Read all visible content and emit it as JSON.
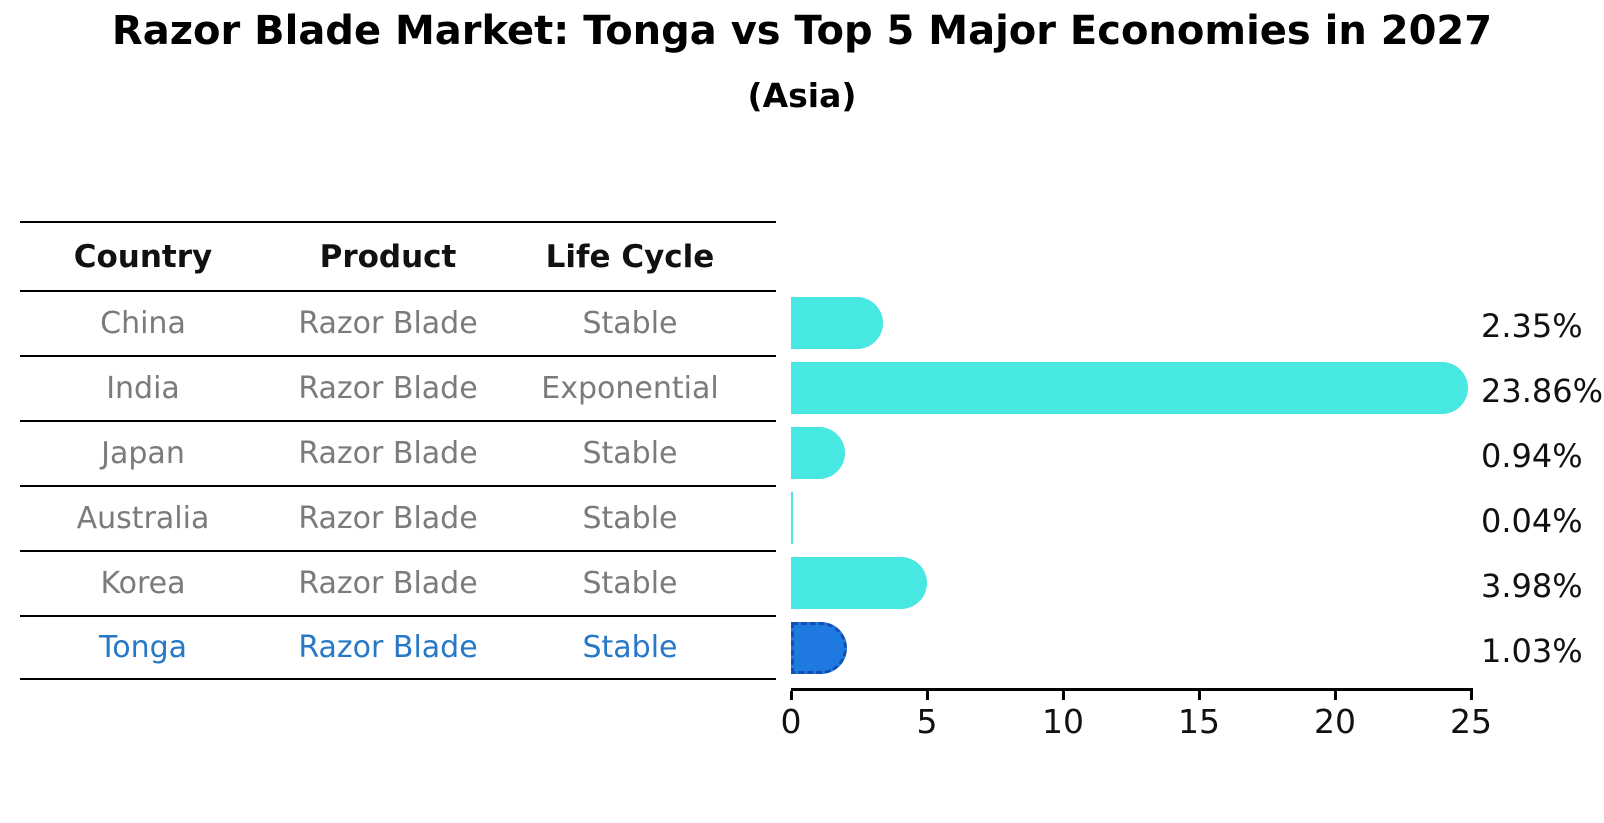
{
  "title": "Razor Blade Market: Tonga vs Top 5 Major Economies in 2027",
  "subtitle": "(Asia)",
  "table": {
    "headers": [
      "Country",
      "Product",
      "Life Cycle"
    ],
    "rows": [
      {
        "country": "China",
        "product": "Razor Blade",
        "life_cycle": "Stable",
        "highlighted": false
      },
      {
        "country": "India",
        "product": "Razor Blade",
        "life_cycle": "Exponential",
        "highlighted": false
      },
      {
        "country": "Japan",
        "product": "Razor Blade",
        "life_cycle": "Stable",
        "highlighted": false
      },
      {
        "country": "Australia",
        "product": "Razor Blade",
        "life_cycle": "Stable",
        "highlighted": false
      },
      {
        "country": "Korea",
        "product": "Razor Blade",
        "life_cycle": "Stable",
        "highlighted": false
      },
      {
        "country": "Tonga",
        "product": "Razor Blade",
        "life_cycle": "Stable",
        "highlighted": true
      }
    ]
  },
  "chart_data": {
    "type": "bar",
    "orientation": "horizontal",
    "title": "Razor Blade Market: Tonga vs Top 5 Major Economies in 2027",
    "subtitle": "(Asia)",
    "categories": [
      "China",
      "India",
      "Japan",
      "Australia",
      "Korea",
      "Tonga"
    ],
    "values": [
      2.35,
      23.86,
      0.94,
      0.04,
      3.98,
      1.03
    ],
    "value_labels": [
      "2.35%",
      "23.86%",
      "0.94%",
      "0.04%",
      "3.98%",
      "1.03%"
    ],
    "xlabel": "",
    "ylabel": "",
    "xlim": [
      0,
      25
    ],
    "x_ticks": [
      0,
      5,
      10,
      15,
      20,
      25
    ],
    "grid": false,
    "legend": false,
    "highlight_category": "Tonga",
    "colors": {
      "bar": "#47E7E2",
      "highlight_bar": "#1E7AE0",
      "highlight_bar_border": "#1450B4",
      "header_text": "#111111",
      "row_text": "#7B7B7B",
      "highlight_text": "#2878C8",
      "axis": "#000000",
      "value_label_text": "#111111",
      "background": "#FFFFFF"
    }
  }
}
